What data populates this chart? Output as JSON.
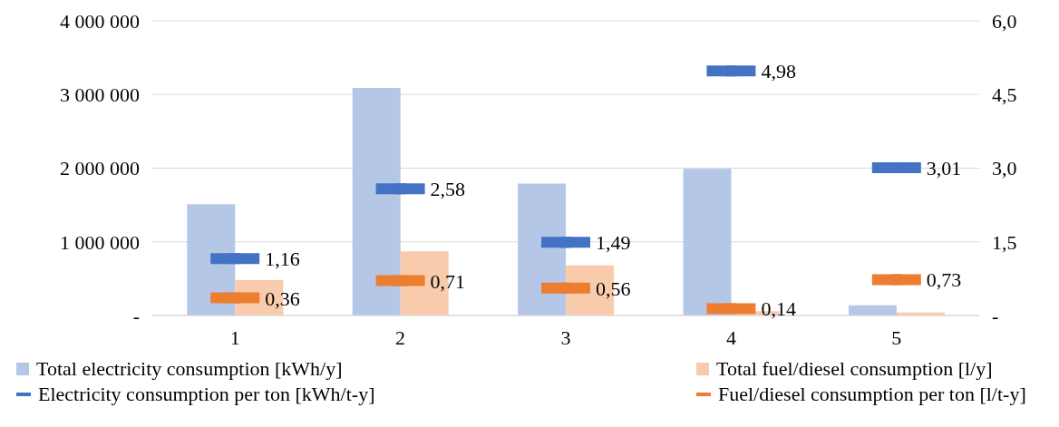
{
  "chart_data": {
    "type": "bar",
    "categories": [
      "1",
      "2",
      "3",
      "4",
      "5"
    ],
    "series": [
      {
        "name": "Total electricity consumption [kWh/y]",
        "color": "#b4c7e7",
        "values": [
          1510000,
          3090000,
          1790000,
          1990000,
          140000
        ]
      },
      {
        "name": "Total fuel/diesel consumption [l/y]",
        "color": "#f8cbad",
        "values": [
          480000,
          870000,
          680000,
          60000,
          40000
        ]
      },
      {
        "name": "Electricity consumption per ton [kWh/t-y]",
        "type": "scatter",
        "axis": "y2",
        "color": "#4472c4",
        "values": [
          1.16,
          2.58,
          1.49,
          4.98,
          3.01
        ],
        "value_labels": [
          "1,16",
          "2,58",
          "1,49",
          "4,98",
          "3,01"
        ]
      },
      {
        "name": "Fuel/diesel consumption per ton [l/t-y]",
        "type": "scatter",
        "axis": "y2",
        "color": "#ed7d31",
        "values": [
          0.36,
          0.71,
          0.56,
          0.14,
          0.73
        ],
        "value_labels": [
          "0,36",
          "0,71",
          "0,56",
          "0,14",
          "0,73"
        ]
      }
    ],
    "ylim": [
      0,
      4000000
    ],
    "yticks": [
      {
        "value": 0,
        "label": "-"
      },
      {
        "value": 1000000,
        "label": "1 000 000"
      },
      {
        "value": 2000000,
        "label": "2 000 000"
      },
      {
        "value": 3000000,
        "label": "3 000 000"
      },
      {
        "value": 4000000,
        "label": "4 000 000"
      }
    ],
    "y2lim": [
      0,
      6
    ],
    "y2ticks": [
      {
        "value": 0,
        "label": "-"
      },
      {
        "value": 1.5,
        "label": "1,5"
      },
      {
        "value": 3,
        "label": "3,0"
      },
      {
        "value": 4.5,
        "label": "4,5"
      },
      {
        "value": 6,
        "label": "6,0"
      }
    ],
    "grid": "y",
    "legend": "bottom",
    "marker": "square"
  }
}
